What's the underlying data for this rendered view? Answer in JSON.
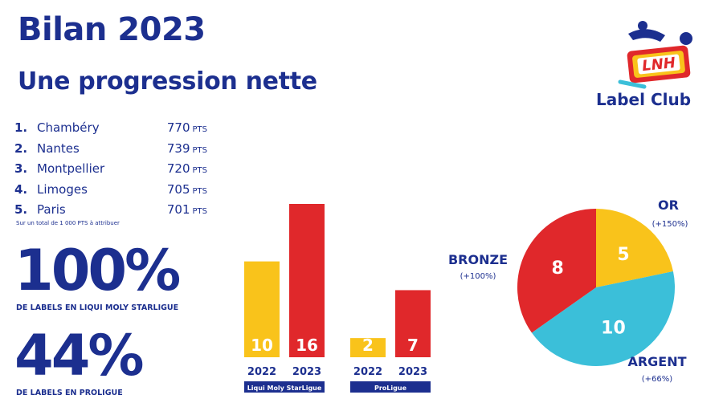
{
  "header": {
    "title": "Bilan 2023",
    "subtitle": "Une progression nette"
  },
  "logo": {
    "text": "Label Club",
    "badge": "LNH"
  },
  "ranking": {
    "items": [
      {
        "num": "1.",
        "name": "Chambéry",
        "pts": "770",
        "unit": "PTS"
      },
      {
        "num": "2.",
        "name": "Nantes",
        "pts": "739",
        "unit": "PTS"
      },
      {
        "num": "3.",
        "name": "Montpellier",
        "pts": "720",
        "unit": "PTS"
      },
      {
        "num": "4.",
        "name": "Limoges",
        "pts": "705",
        "unit": "PTS"
      },
      {
        "num": "5.",
        "name": "Paris",
        "pts": "701",
        "unit": "PTS"
      }
    ],
    "footnote": "Sur un total de 1 000 PTS à attribuer"
  },
  "stats": {
    "starligue_pct": "100%",
    "starligue_caption": "DE LABELS EN LIQUI MOLY STARLIGUE",
    "proligue_pct": "44%",
    "proligue_caption": "DE LABELS EN PROLIGUE"
  },
  "colors": {
    "navy": "#1c2f8f",
    "yellow": "#f9c31b",
    "red": "#e0282b",
    "blue": "#3bbfd9"
  },
  "chart_data": [
    {
      "type": "bar",
      "groups": [
        {
          "label": "Liqui Moly StarLigue",
          "categories": [
            "2022",
            "2023"
          ],
          "values": [
            10,
            16
          ],
          "colors": [
            "#f9c31b",
            "#e0282b"
          ]
        },
        {
          "label": "ProLigue",
          "categories": [
            "2022",
            "2023"
          ],
          "values": [
            2,
            7
          ],
          "colors": [
            "#f9c31b",
            "#e0282b"
          ]
        }
      ],
      "ylim": [
        0,
        16
      ]
    },
    {
      "type": "pie",
      "slices": [
        {
          "label": "OR",
          "value": 5,
          "change": "(+150%)",
          "color": "#f9c31b"
        },
        {
          "label": "ARGENT",
          "value": 10,
          "change": "(+66%)",
          "color": "#3bbfd9"
        },
        {
          "label": "BRONZE",
          "value": 8,
          "change": "(+100%)",
          "color": "#e0282b"
        }
      ]
    }
  ]
}
